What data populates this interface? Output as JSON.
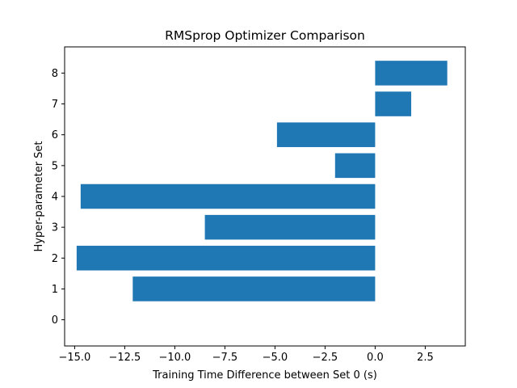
{
  "chart_data": {
    "type": "bar",
    "orientation": "horizontal",
    "title": "RMSprop Optimizer Comparison",
    "xlabel": "Training Time Difference between Set 0 (s)",
    "ylabel": "Hyper-parameter Set",
    "categories": [
      0,
      1,
      2,
      3,
      4,
      5,
      6,
      7,
      8
    ],
    "values": [
      0.0,
      -12.1,
      -14.9,
      -8.5,
      -14.7,
      -2.0,
      -4.9,
      1.8,
      3.6
    ],
    "xlim": [
      -15.5,
      4.5
    ],
    "ylim": [
      -0.85,
      8.85
    ],
    "xticks": [
      -15.0,
      -12.5,
      -10.0,
      -7.5,
      -5.0,
      -2.5,
      0.0,
      2.5
    ],
    "xtick_labels": [
      "−15.0",
      "−12.5",
      "−10.0",
      "−7.5",
      "−5.0",
      "−2.5",
      "0.0",
      "2.5"
    ],
    "ytick_labels": [
      "0",
      "1",
      "2",
      "3",
      "4",
      "5",
      "6",
      "7",
      "8"
    ],
    "bar_color": "#1f77b4",
    "grid": false,
    "legend": "none"
  }
}
